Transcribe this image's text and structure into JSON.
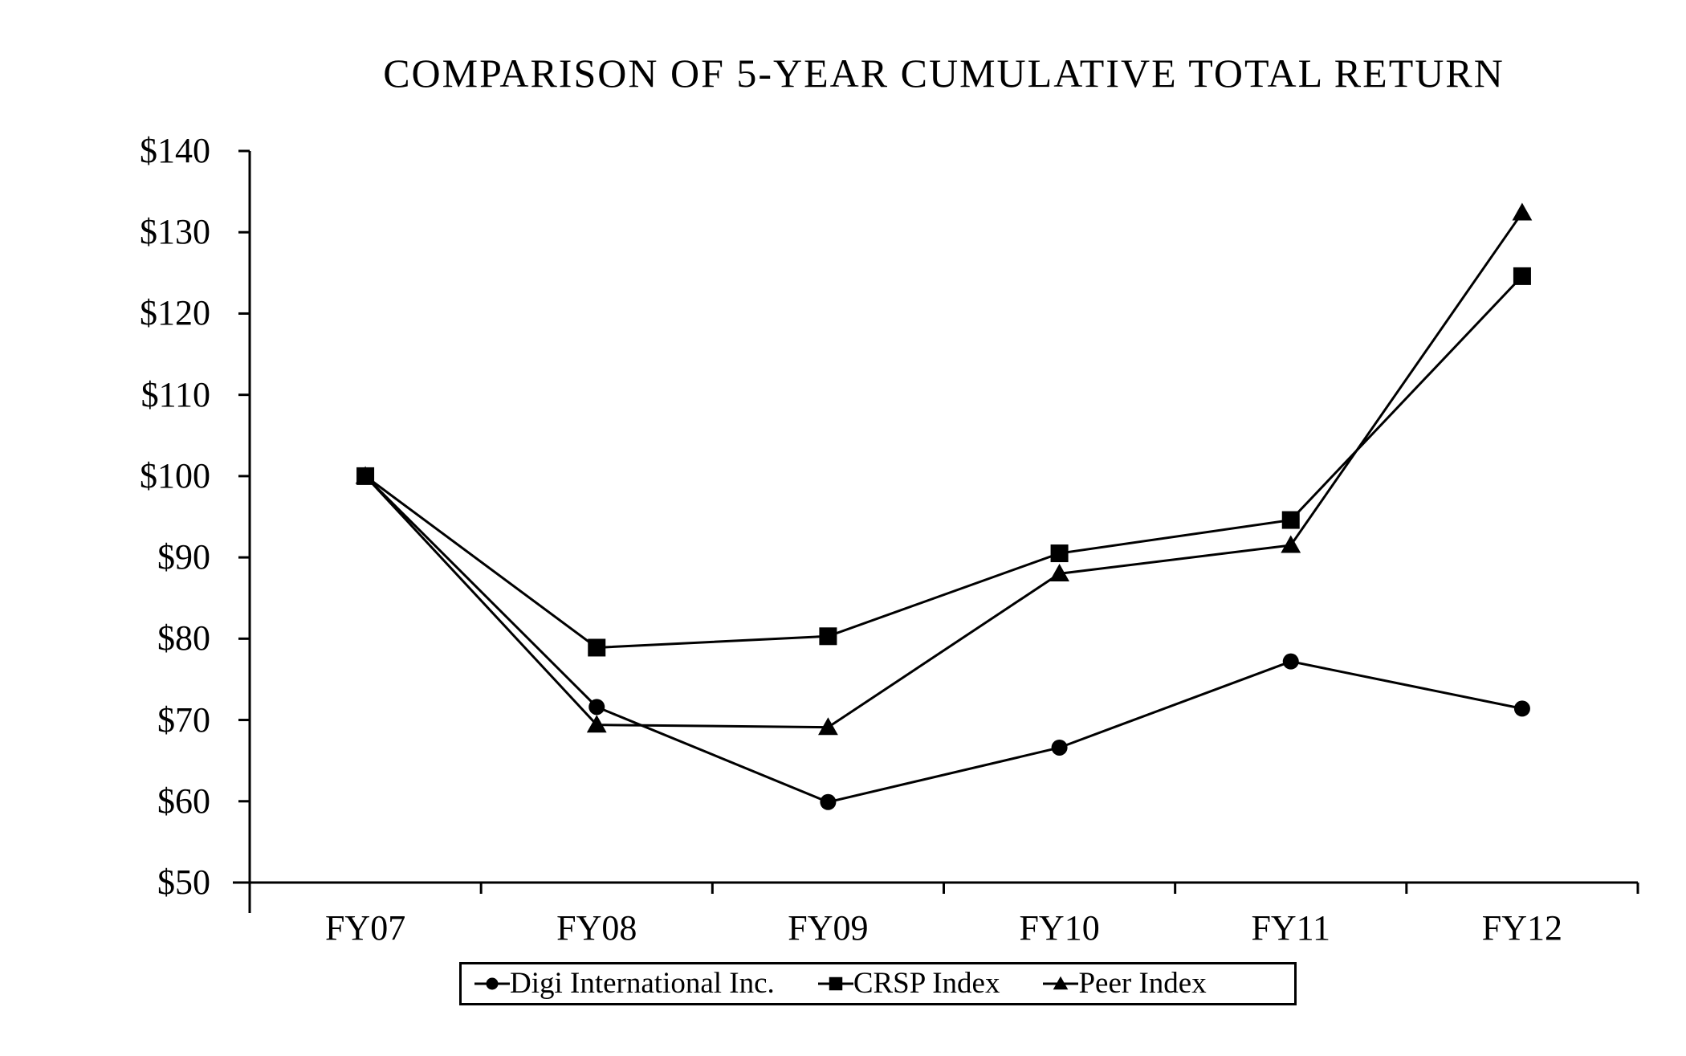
{
  "title": "COMPARISON OF 5-YEAR CUMULATIVE TOTAL RETURN",
  "colors": {
    "foreground": "#000000",
    "background": "#ffffff"
  },
  "chart_data": {
    "type": "line",
    "title": "COMPARISON OF 5-YEAR CUMULATIVE TOTAL RETURN",
    "xlabel": "",
    "ylabel": "",
    "categories": [
      "FY07",
      "FY08",
      "FY09",
      "FY10",
      "FY11",
      "FY12"
    ],
    "series": [
      {
        "name": "Digi International Inc.",
        "marker": "circle",
        "values": [
          100,
          71.6,
          59.9,
          66.6,
          77.2,
          71.4
        ]
      },
      {
        "name": "CRSP Index",
        "marker": "square",
        "values": [
          100,
          78.9,
          80.3,
          90.5,
          94.6,
          124.6
        ]
      },
      {
        "name": "Peer Index",
        "marker": "triangle",
        "values": [
          100,
          69.4,
          69.1,
          88.0,
          91.5,
          132.4
        ]
      }
    ],
    "ylim": [
      50,
      140
    ],
    "ytick_step": 10,
    "ytick_labels": [
      "$50",
      "$60",
      "$70",
      "$80",
      "$90",
      "$100",
      "$110",
      "$120",
      "$130",
      "$140"
    ],
    "grid": false,
    "legend_position": "bottom"
  }
}
